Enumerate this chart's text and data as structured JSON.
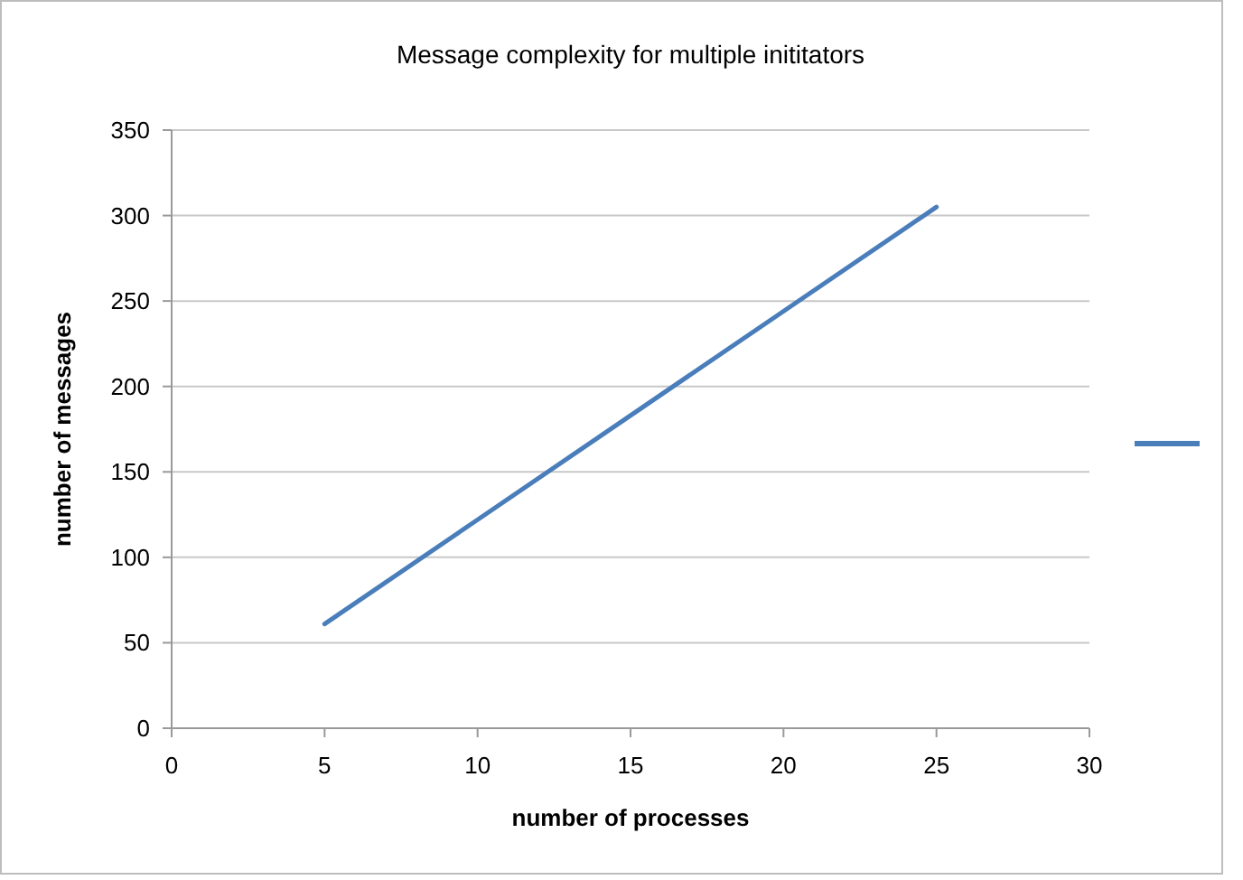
{
  "chart_data": {
    "type": "line",
    "title": "Message complexity for multiple inititators",
    "xlabel": "number of processes",
    "ylabel": "number of messages",
    "x": [
      5,
      10,
      15,
      20,
      25
    ],
    "series": [
      {
        "color": "#4a7ebb",
        "values": [
          61,
          122,
          183,
          244,
          305
        ]
      }
    ],
    "xlim": [
      0,
      30
    ],
    "xticks": [
      0,
      5,
      10,
      15,
      20,
      25,
      30
    ],
    "ylim": [
      0,
      350
    ],
    "yticks": [
      0,
      50,
      100,
      150,
      200,
      250,
      300,
      350
    ],
    "grid": "y",
    "marker": "none",
    "line_style": "solid"
  }
}
